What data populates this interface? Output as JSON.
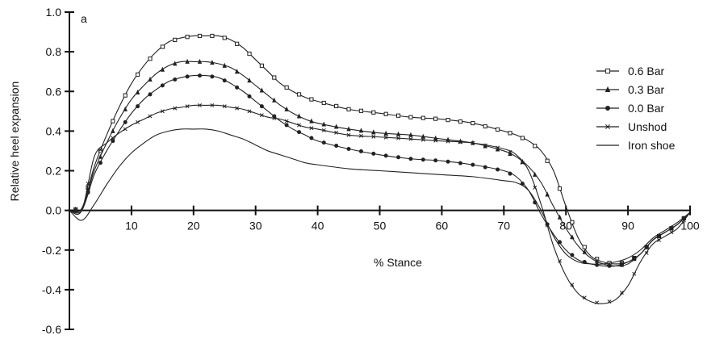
{
  "chart_data": {
    "type": "line",
    "panel_label": "a",
    "xlabel": "% Stance",
    "ylabel": "Relative heel expansion",
    "xlim": [
      0,
      100
    ],
    "ylim": [
      -0.6,
      1.0
    ],
    "x_ticks": [
      10,
      20,
      30,
      40,
      50,
      60,
      70,
      80,
      90,
      100
    ],
    "x_tick_labels": [
      "10",
      "20",
      "30",
      "40",
      "50",
      "60",
      "70",
      "80",
      "90",
      "100"
    ],
    "y_ticks": [
      -0.6,
      -0.4,
      -0.2,
      0.0,
      0.2,
      0.4,
      0.6,
      0.8,
      1.0
    ],
    "y_tick_labels": [
      "-0.6",
      "-0.4",
      "-0.2",
      "0.0",
      "0.2",
      "0.4",
      "0.6",
      "0.8",
      "1.0"
    ],
    "grid": false,
    "legend_position": "right",
    "series": [
      {
        "name": "0.6 Bar",
        "marker": "square",
        "x": [
          0,
          2,
          4,
          6,
          8,
          10,
          12,
          14,
          16,
          18,
          20,
          22,
          24,
          26,
          28,
          30,
          32,
          34,
          36,
          38,
          40,
          45,
          50,
          55,
          60,
          65,
          70,
          72,
          74,
          76,
          78,
          80,
          82,
          84,
          86,
          88,
          90,
          92,
          94,
          96,
          98,
          100
        ],
        "y": [
          0.0,
          0.01,
          0.22,
          0.38,
          0.52,
          0.64,
          0.73,
          0.8,
          0.85,
          0.87,
          0.88,
          0.88,
          0.88,
          0.86,
          0.82,
          0.76,
          0.7,
          0.64,
          0.6,
          0.57,
          0.55,
          0.51,
          0.49,
          0.47,
          0.46,
          0.44,
          0.4,
          0.38,
          0.35,
          0.3,
          0.2,
          0.02,
          -0.14,
          -0.23,
          -0.26,
          -0.27,
          -0.26,
          -0.22,
          -0.15,
          -0.11,
          -0.07,
          -0.01
        ]
      },
      {
        "name": "0.3 Bar",
        "marker": "triangle",
        "x": [
          0,
          2,
          4,
          6,
          8,
          10,
          12,
          14,
          16,
          18,
          20,
          22,
          24,
          26,
          28,
          30,
          32,
          34,
          36,
          38,
          40,
          45,
          50,
          55,
          60,
          65,
          70,
          72,
          74,
          76,
          78,
          80,
          82,
          84,
          86,
          88,
          90,
          92,
          94,
          96,
          98,
          100
        ],
        "y": [
          0.0,
          0.01,
          0.2,
          0.34,
          0.46,
          0.56,
          0.63,
          0.69,
          0.73,
          0.75,
          0.75,
          0.75,
          0.74,
          0.72,
          0.68,
          0.63,
          0.58,
          0.53,
          0.49,
          0.46,
          0.44,
          0.41,
          0.39,
          0.38,
          0.36,
          0.34,
          0.3,
          0.27,
          0.22,
          0.14,
          0.02,
          -0.09,
          -0.18,
          -0.24,
          -0.27,
          -0.28,
          -0.27,
          -0.22,
          -0.15,
          -0.11,
          -0.07,
          -0.01
        ]
      },
      {
        "name": "0.0 Bar",
        "marker": "circle",
        "x": [
          0,
          2,
          4,
          6,
          8,
          10,
          12,
          14,
          16,
          18,
          20,
          22,
          24,
          26,
          28,
          30,
          32,
          34,
          36,
          38,
          40,
          45,
          50,
          55,
          60,
          65,
          70,
          72,
          74,
          76,
          78,
          80,
          82,
          84,
          86,
          88,
          90,
          92,
          94,
          96,
          98,
          100
        ],
        "y": [
          0.0,
          0.0,
          0.18,
          0.3,
          0.4,
          0.49,
          0.56,
          0.61,
          0.65,
          0.67,
          0.68,
          0.68,
          0.67,
          0.64,
          0.6,
          0.55,
          0.5,
          0.45,
          0.41,
          0.38,
          0.35,
          0.31,
          0.28,
          0.26,
          0.25,
          0.23,
          0.2,
          0.17,
          0.1,
          -0.02,
          -0.12,
          -0.2,
          -0.25,
          -0.27,
          -0.28,
          -0.28,
          -0.26,
          -0.22,
          -0.15,
          -0.11,
          -0.07,
          -0.01
        ]
      },
      {
        "name": "Unshod",
        "marker": "x",
        "x": [
          0,
          2,
          4,
          6,
          8,
          10,
          12,
          14,
          16,
          18,
          20,
          22,
          24,
          26,
          28,
          30,
          32,
          34,
          36,
          38,
          40,
          45,
          50,
          55,
          60,
          65,
          70,
          72,
          74,
          76,
          78,
          80,
          82,
          84,
          86,
          88,
          90,
          92,
          94,
          96,
          98,
          100
        ],
        "y": [
          0.0,
          0.0,
          0.27,
          0.34,
          0.39,
          0.43,
          0.46,
          0.49,
          0.51,
          0.52,
          0.53,
          0.53,
          0.53,
          0.52,
          0.51,
          0.49,
          0.47,
          0.46,
          0.44,
          0.42,
          0.41,
          0.38,
          0.37,
          0.36,
          0.35,
          0.34,
          0.31,
          0.28,
          0.2,
          0.03,
          -0.18,
          -0.33,
          -0.42,
          -0.46,
          -0.47,
          -0.45,
          -0.38,
          -0.26,
          -0.17,
          -0.13,
          -0.09,
          -0.01
        ]
      },
      {
        "name": "Iron shoe",
        "marker": "none",
        "x": [
          0,
          2,
          4,
          6,
          8,
          10,
          12,
          14,
          16,
          18,
          20,
          22,
          24,
          26,
          28,
          30,
          32,
          34,
          36,
          38,
          40,
          45,
          50,
          55,
          60,
          65,
          70,
          72,
          74,
          76,
          78,
          80,
          82,
          84,
          86,
          88,
          90,
          92,
          94,
          96,
          98,
          100
        ],
        "y": [
          0.0,
          -0.05,
          0.03,
          0.13,
          0.22,
          0.29,
          0.34,
          0.38,
          0.4,
          0.41,
          0.41,
          0.41,
          0.4,
          0.38,
          0.36,
          0.33,
          0.3,
          0.28,
          0.26,
          0.24,
          0.23,
          0.21,
          0.2,
          0.19,
          0.18,
          0.17,
          0.15,
          0.14,
          0.1,
          0.0,
          -0.13,
          -0.22,
          -0.26,
          -0.27,
          -0.27,
          -0.26,
          -0.24,
          -0.2,
          -0.14,
          -0.1,
          -0.06,
          -0.01
        ]
      }
    ],
    "styles": {
      "line_color": "#222222",
      "axis_color": "#111111"
    }
  }
}
